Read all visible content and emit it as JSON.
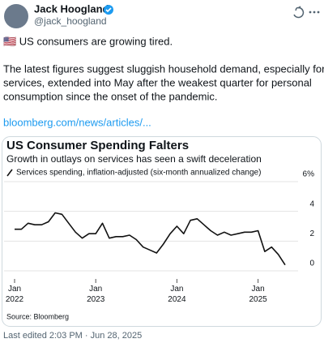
{
  "author": {
    "name": "Jack Hoogland",
    "handle": "@jack_hoogland"
  },
  "text_lines": [
    "🇺🇸 US consumers are growing tired.",
    "The latest figures suggest sluggish household demand, especially for",
    "services, extended into May after the weakest quarter for personal",
    "consumption since the onset of the pandemic."
  ],
  "link": "bloomberg.com/news/articles/...",
  "footer": "Last edited 2:03 PM · Jun 28, 2025",
  "chart_data": {
    "type": "line",
    "title": "US Consumer Spending Falters",
    "subtitle": "Growth in outlays on services has seen a swift deceleration",
    "source": "Source: Bloomberg",
    "x": [
      "2022-01",
      "2022-02",
      "2022-03",
      "2022-04",
      "2022-05",
      "2022-06",
      "2022-07",
      "2022-08",
      "2022-09",
      "2022-10",
      "2022-11",
      "2022-12",
      "2023-01",
      "2023-02",
      "2023-03",
      "2023-04",
      "2023-05",
      "2023-06",
      "2023-07",
      "2023-08",
      "2023-09",
      "2023-10",
      "2023-11",
      "2023-12",
      "2024-01",
      "2024-02",
      "2024-03",
      "2024-04",
      "2024-05",
      "2024-06",
      "2024-07",
      "2024-08",
      "2024-09",
      "2024-10",
      "2024-11",
      "2024-12",
      "2025-01",
      "2025-02",
      "2025-03",
      "2025-04",
      "2025-05"
    ],
    "series": [
      {
        "name": "Services spending, inflation-adjusted (six-month annualized change)",
        "color": "#111111",
        "values": [
          2.8,
          2.8,
          3.2,
          3.1,
          3.1,
          3.3,
          3.9,
          3.8,
          3.2,
          2.6,
          2.2,
          2.5,
          2.5,
          3.2,
          2.2,
          2.3,
          2.3,
          2.4,
          2.1,
          1.6,
          1.4,
          1.2,
          1.8,
          2.5,
          3.0,
          2.5,
          3.4,
          3.5,
          3.1,
          2.7,
          2.4,
          2.6,
          2.4,
          2.5,
          2.6,
          2.6,
          2.7,
          1.3,
          1.6,
          1.1,
          0.4
        ]
      }
    ],
    "xticks": [
      {
        "value": "2022-01",
        "label": "Jan 2022"
      },
      {
        "value": "2023-01",
        "label": "Jan 2023"
      },
      {
        "value": "2024-01",
        "label": "Jan 2024"
      },
      {
        "value": "2025-01",
        "label": "Jan 2025"
      }
    ],
    "ylim": [
      0,
      6
    ],
    "yticks": [
      0,
      2,
      4,
      {
        "value": 6,
        "label": "6%"
      }
    ],
    "grid": true
  }
}
